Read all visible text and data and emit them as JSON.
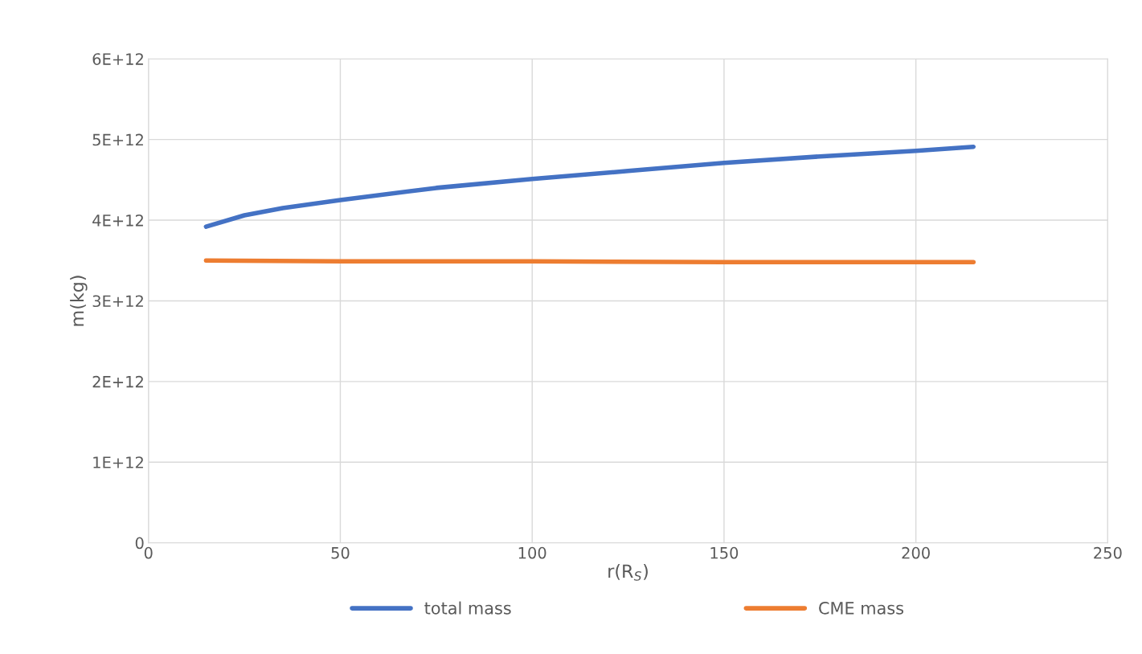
{
  "chart_data": {
    "type": "line",
    "xlabel": "r(R$_{S}$)",
    "ylabel": "m(kg)",
    "series": [
      {
        "name": "total mass",
        "color": "#4472c4",
        "x": [
          15,
          25,
          35,
          50,
          75,
          100,
          125,
          150,
          175,
          200,
          215
        ],
        "values": [
          3920000000000.0,
          4060000000000.0,
          4150000000000.0,
          4250000000000.0,
          4400000000000.0,
          4510000000000.0,
          4610000000000.0,
          4710000000000.0,
          4790000000000.0,
          4860000000000.0,
          4910000000000.0
        ]
      },
      {
        "name": "CME mass",
        "color": "#ed7d31",
        "x": [
          15,
          50,
          100,
          150,
          215
        ],
        "values": [
          3500000000000.0,
          3490000000000.0,
          3490000000000.0,
          3480000000000.0,
          3480000000000.0
        ]
      }
    ],
    "xlim": [
      0,
      250
    ],
    "xticks": [
      0,
      50,
      100,
      150,
      200,
      250
    ],
    "ylim": [
      0,
      6000000000000.0
    ],
    "yticks": [
      {
        "value": 0,
        "label": "0"
      },
      {
        "value": 1000000000000.0,
        "label": "1E+12"
      },
      {
        "value": 2000000000000.0,
        "label": "2E+12"
      },
      {
        "value": 3000000000000.0,
        "label": "3E+12"
      },
      {
        "value": 4000000000000.0,
        "label": "4E+12"
      },
      {
        "value": 5000000000000.0,
        "label": "5E+12"
      },
      {
        "value": 6000000000000.0,
        "label": "6E+12"
      }
    ],
    "grid": true,
    "legend": "bottom",
    "marker": "none",
    "line_style": "solid"
  }
}
